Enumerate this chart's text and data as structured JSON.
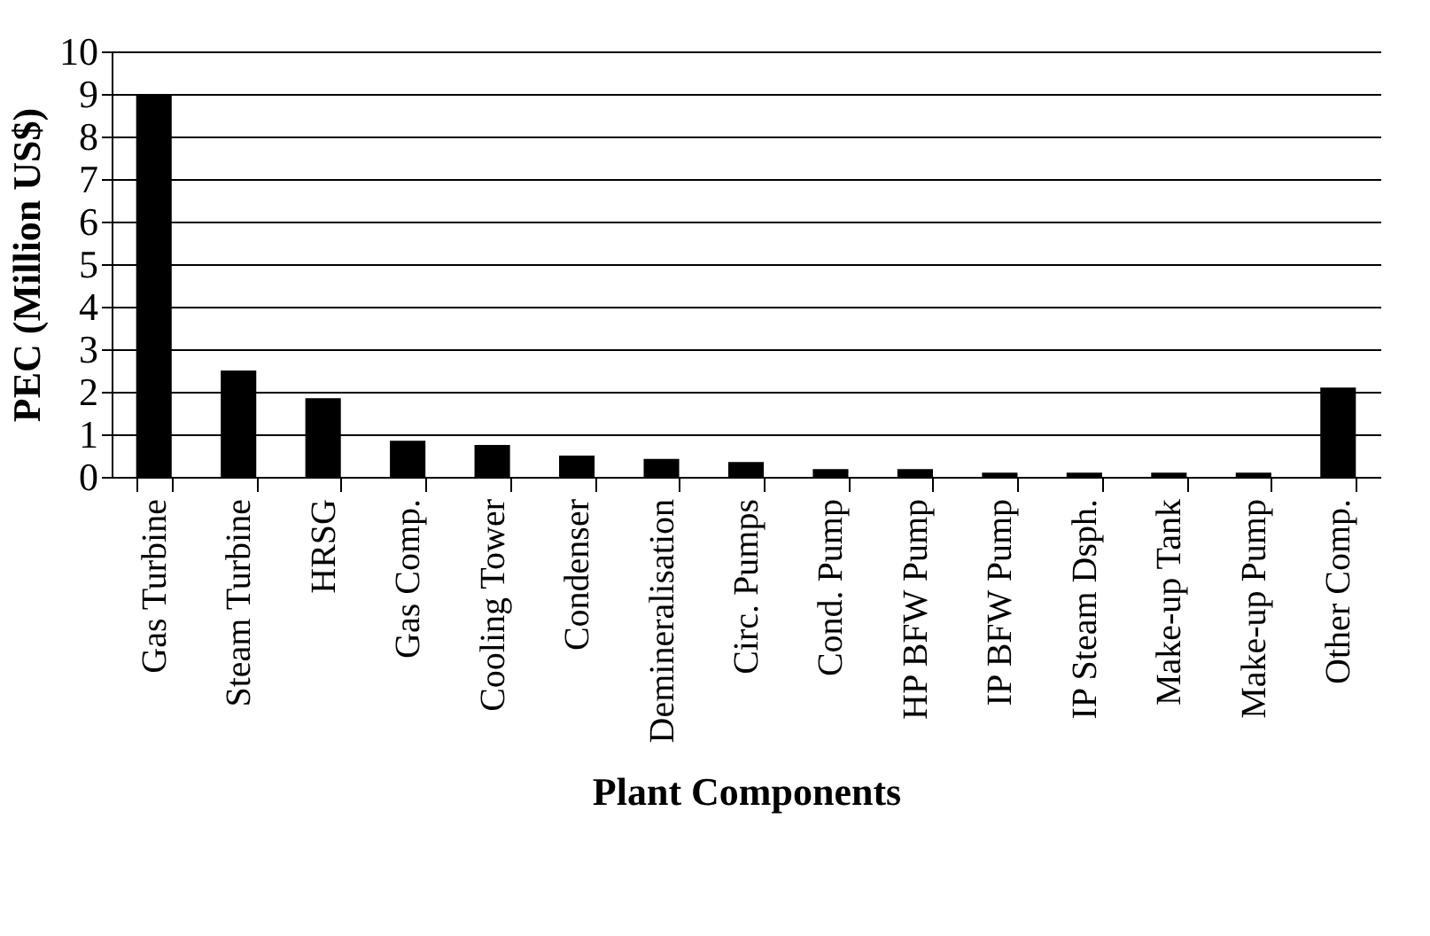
{
  "chart_data": {
    "type": "bar",
    "xlabel": "Plant Components",
    "ylabel": "PEC (Million US$)",
    "categories": [
      "Gas Turbine",
      "Steam Turbine",
      "HRSG",
      "Gas Comp.",
      "Cooling Tower",
      "Condenser",
      "Demineralisation",
      "Circ. Pumps",
      "Cond. Pump",
      "HP BFW Pump",
      "IP BFW Pump",
      "IP Steam Dsph.",
      "Make-up Tank",
      "Make-up Pump",
      "Other Comp."
    ],
    "values": [
      9.0,
      2.5,
      1.85,
      0.85,
      0.75,
      0.5,
      0.42,
      0.35,
      0.18,
      0.18,
      0.1,
      0.1,
      0.1,
      0.1,
      2.1
    ],
    "color": "#000000",
    "ylim": [
      0,
      10
    ],
    "yticks": [
      0,
      1,
      2,
      3,
      4,
      5,
      6,
      7,
      8,
      9,
      10
    ],
    "grid": "y"
  }
}
